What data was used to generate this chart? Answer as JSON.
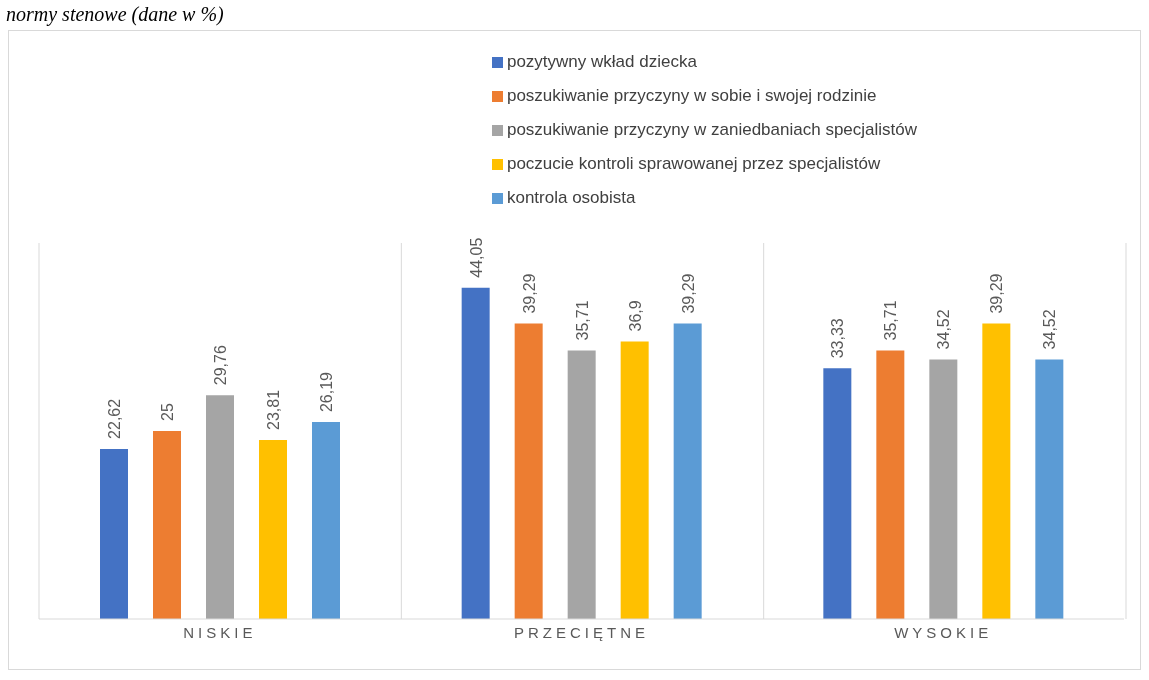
{
  "chart_data": {
    "type": "bar",
    "title": "normy stenowe (dane w %)",
    "categories": [
      "NISKIE",
      "PRZECIĘTNE",
      "WYSOKIE"
    ],
    "series": [
      {
        "name": "pozytywny wkład dziecka",
        "color": "#4472c4",
        "values": [
          22.62,
          44.05,
          33.33
        ],
        "value_labels": [
          "22,62",
          "44,05",
          "33,33"
        ]
      },
      {
        "name": "poszukiwanie przyczyny w sobie i swojej rodzinie",
        "color": "#ed7d31",
        "values": [
          25,
          39.29,
          35.71
        ],
        "value_labels": [
          "25",
          "39,29",
          "35,71"
        ]
      },
      {
        "name": "poszukiwanie przyczyny w zaniedbaniach specjalistów",
        "color": "#a5a5a5",
        "values": [
          29.76,
          35.71,
          34.52
        ],
        "value_labels": [
          "29,76",
          "35,71",
          "34,52"
        ]
      },
      {
        "name": "poczucie kontroli sprawowanej przez specjalistów",
        "color": "#ffc000",
        "values": [
          23.81,
          36.9,
          39.29
        ],
        "value_labels": [
          "23,81",
          "36,9",
          "39,29"
        ]
      },
      {
        "name": "kontrola osobista",
        "color": "#5b9bd5",
        "values": [
          26.19,
          39.29,
          34.52
        ],
        "value_labels": [
          "26,19",
          "39,29",
          "34,52"
        ]
      }
    ],
    "ylim": [
      0,
      50
    ],
    "grid": "x",
    "legend": "top",
    "tick_labels": "x"
  }
}
